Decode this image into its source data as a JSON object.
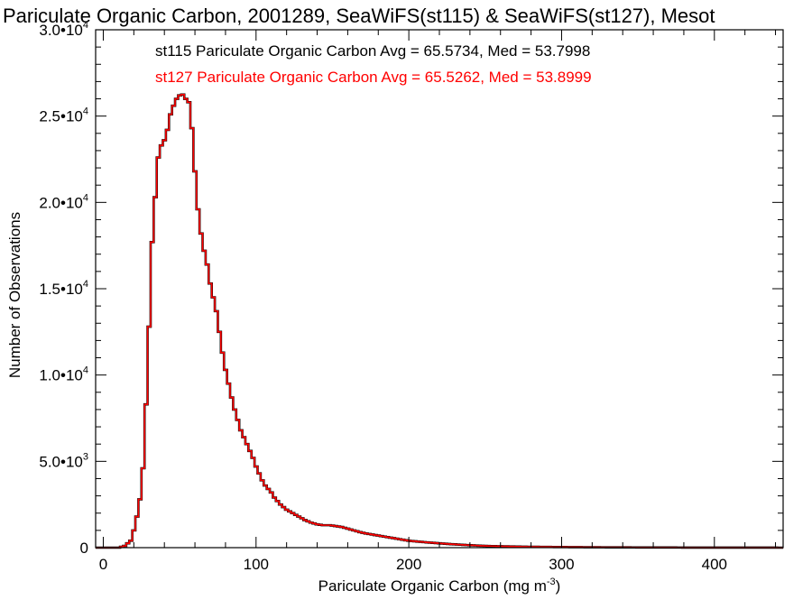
{
  "chart_data": {
    "type": "line",
    "title": "Pariculate Organic Carbon, 2001289, SeaWiFS(st115) & SeaWiFS(st127), Mesot",
    "xlabel": "Pariculate Organic Carbon (mg m",
    "xlabel_sup": "-3",
    "xlabel_end": ")",
    "ylabel": "Number of Observations",
    "xlim": [
      -5,
      445
    ],
    "ylim": [
      0,
      30000
    ],
    "x_ticks": [
      {
        "value": 0,
        "label": "0"
      },
      {
        "value": 100,
        "label": "100"
      },
      {
        "value": 200,
        "label": "200"
      },
      {
        "value": 300,
        "label": "300"
      },
      {
        "value": 400,
        "label": "400"
      }
    ],
    "y_ticks": [
      {
        "value": 0,
        "mant": "0",
        "exp": ""
      },
      {
        "value": 5000,
        "mant": "5.0•10",
        "exp": "3"
      },
      {
        "value": 10000,
        "mant": "1.0•10",
        "exp": "4"
      },
      {
        "value": 15000,
        "mant": "1.5•10",
        "exp": "4"
      },
      {
        "value": 20000,
        "mant": "2.0•10",
        "exp": "4"
      },
      {
        "value": 25000,
        "mant": "2.5•10",
        "exp": "4"
      },
      {
        "value": 30000,
        "mant": "3.0•10",
        "exp": "4"
      }
    ],
    "step": 2,
    "annotations": [
      {
        "name": "st115",
        "text": "st115 Pariculate Organic Carbon Avg = 65.5734, Med = 53.7998",
        "color": "#000000"
      },
      {
        "name": "st127",
        "text": "st127 Pariculate Organic Carbon Avg = 65.5262, Med = 53.8999",
        "color": "#ff0000"
      }
    ],
    "series": [
      {
        "name": "st115",
        "color": "#000000",
        "points": [
          [
            -5,
            0
          ],
          [
            10,
            0
          ],
          [
            14,
            100
          ],
          [
            18,
            400
          ],
          [
            20,
            1000
          ],
          [
            22,
            1800
          ],
          [
            24,
            2800
          ],
          [
            26,
            4600
          ],
          [
            28,
            8300
          ],
          [
            30,
            12800
          ],
          [
            32,
            17700
          ],
          [
            34,
            20300
          ],
          [
            36,
            22600
          ],
          [
            38,
            23300
          ],
          [
            40,
            23600
          ],
          [
            42,
            24200
          ],
          [
            44,
            25100
          ],
          [
            46,
            25600
          ],
          [
            48,
            26000
          ],
          [
            50,
            26200
          ],
          [
            52,
            26250
          ],
          [
            54,
            26000
          ],
          [
            56,
            25800
          ],
          [
            58,
            24300
          ],
          [
            60,
            21800
          ],
          [
            62,
            19600
          ],
          [
            64,
            18200
          ],
          [
            66,
            17200
          ],
          [
            68,
            16400
          ],
          [
            70,
            15300
          ],
          [
            72,
            14500
          ],
          [
            74,
            13700
          ],
          [
            76,
            12500
          ],
          [
            78,
            11300
          ],
          [
            80,
            10300
          ],
          [
            82,
            9500
          ],
          [
            84,
            8700
          ],
          [
            86,
            8000
          ],
          [
            88,
            7400
          ],
          [
            90,
            6800
          ],
          [
            92,
            6400
          ],
          [
            94,
            6000
          ],
          [
            96,
            5600
          ],
          [
            98,
            5200
          ],
          [
            100,
            4700
          ],
          [
            102,
            4300
          ],
          [
            104,
            3900
          ],
          [
            106,
            3600
          ],
          [
            108,
            3400
          ],
          [
            110,
            3200
          ],
          [
            112,
            2900
          ],
          [
            114,
            2700
          ],
          [
            116,
            2500
          ],
          [
            118,
            2350
          ],
          [
            120,
            2200
          ],
          [
            124,
            2000
          ],
          [
            128,
            1800
          ],
          [
            132,
            1600
          ],
          [
            136,
            1450
          ],
          [
            140,
            1350
          ],
          [
            144,
            1300
          ],
          [
            148,
            1300
          ],
          [
            152,
            1250
          ],
          [
            156,
            1200
          ],
          [
            160,
            1100
          ],
          [
            164,
            1000
          ],
          [
            168,
            900
          ],
          [
            172,
            820
          ],
          [
            176,
            760
          ],
          [
            180,
            700
          ],
          [
            184,
            640
          ],
          [
            188,
            580
          ],
          [
            192,
            520
          ],
          [
            196,
            460
          ],
          [
            200,
            400
          ],
          [
            210,
            320
          ],
          [
            220,
            250
          ],
          [
            230,
            190
          ],
          [
            240,
            140
          ],
          [
            250,
            100
          ],
          [
            260,
            80
          ],
          [
            280,
            50
          ],
          [
            300,
            35
          ],
          [
            320,
            22
          ],
          [
            350,
            12
          ],
          [
            380,
            6
          ],
          [
            410,
            3
          ],
          [
            440,
            1
          ],
          [
            445,
            0
          ]
        ]
      },
      {
        "name": "st127",
        "color": "#ff0000",
        "points": [
          [
            -5,
            0
          ],
          [
            10,
            0
          ],
          [
            14,
            100
          ],
          [
            18,
            400
          ],
          [
            20,
            1000
          ],
          [
            22,
            1800
          ],
          [
            24,
            2800
          ],
          [
            26,
            4600
          ],
          [
            28,
            8300
          ],
          [
            30,
            12800
          ],
          [
            32,
            17700
          ],
          [
            34,
            20300
          ],
          [
            36,
            22600
          ],
          [
            38,
            23300
          ],
          [
            40,
            23600
          ],
          [
            42,
            24200
          ],
          [
            44,
            25100
          ],
          [
            46,
            25600
          ],
          [
            48,
            26000
          ],
          [
            50,
            26200
          ],
          [
            52,
            26250
          ],
          [
            54,
            26000
          ],
          [
            56,
            25800
          ],
          [
            58,
            24300
          ],
          [
            60,
            21800
          ],
          [
            62,
            19600
          ],
          [
            64,
            18200
          ],
          [
            66,
            17200
          ],
          [
            68,
            16400
          ],
          [
            70,
            15300
          ],
          [
            72,
            14500
          ],
          [
            74,
            13700
          ],
          [
            76,
            12500
          ],
          [
            78,
            11300
          ],
          [
            80,
            10300
          ],
          [
            82,
            9500
          ],
          [
            84,
            8700
          ],
          [
            86,
            8000
          ],
          [
            88,
            7400
          ],
          [
            90,
            6800
          ],
          [
            92,
            6400
          ],
          [
            94,
            6000
          ],
          [
            96,
            5600
          ],
          [
            98,
            5200
          ],
          [
            100,
            4700
          ],
          [
            102,
            4300
          ],
          [
            104,
            3900
          ],
          [
            106,
            3600
          ],
          [
            108,
            3400
          ],
          [
            110,
            3200
          ],
          [
            112,
            2900
          ],
          [
            114,
            2700
          ],
          [
            116,
            2500
          ],
          [
            118,
            2350
          ],
          [
            120,
            2200
          ],
          [
            124,
            2000
          ],
          [
            128,
            1800
          ],
          [
            132,
            1600
          ],
          [
            136,
            1450
          ],
          [
            140,
            1350
          ],
          [
            144,
            1300
          ],
          [
            148,
            1300
          ],
          [
            152,
            1250
          ],
          [
            156,
            1200
          ],
          [
            160,
            1100
          ],
          [
            164,
            1000
          ],
          [
            168,
            900
          ],
          [
            172,
            820
          ],
          [
            176,
            760
          ],
          [
            180,
            700
          ],
          [
            184,
            640
          ],
          [
            188,
            580
          ],
          [
            192,
            520
          ],
          [
            196,
            460
          ],
          [
            200,
            400
          ],
          [
            210,
            320
          ],
          [
            220,
            250
          ],
          [
            230,
            190
          ],
          [
            240,
            140
          ],
          [
            250,
            100
          ],
          [
            260,
            80
          ],
          [
            280,
            50
          ],
          [
            300,
            35
          ],
          [
            320,
            22
          ],
          [
            350,
            12
          ],
          [
            380,
            6
          ],
          [
            410,
            3
          ],
          [
            440,
            1
          ],
          [
            445,
            0
          ]
        ]
      }
    ]
  }
}
